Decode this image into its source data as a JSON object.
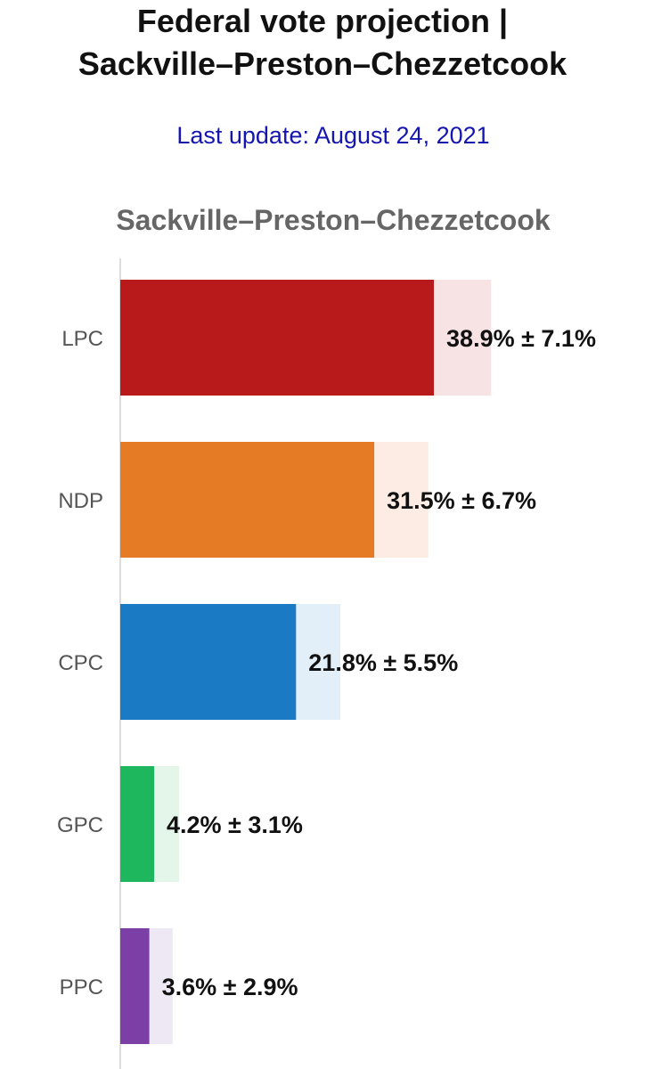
{
  "header": {
    "title_line1": "Federal vote projection |",
    "title_line2": "Sackville–Preston–Chezzetcook",
    "update": "Last update: August 24, 2021"
  },
  "chart_data": {
    "type": "bar",
    "orientation": "horizontal",
    "title": "Sackville–Preston–Chezzetcook",
    "categories": [
      "LPC",
      "NDP",
      "CPC",
      "GPC",
      "PPC"
    ],
    "values": [
      38.9,
      31.5,
      21.8,
      4.2,
      3.6
    ],
    "errors": [
      7.1,
      6.7,
      5.5,
      3.1,
      2.9
    ],
    "value_labels": [
      "38.9% ± 7.1%",
      "31.5% ± 6.7%",
      "21.8% ± 5.5%",
      "4.2% ± 3.1%",
      "3.6% ± 2.9%"
    ],
    "colors": [
      "#b8191b",
      "#e57b25",
      "#1b7ac4",
      "#1fb75e",
      "#7b3fa5"
    ],
    "band_colors": [
      "#f7e3e3",
      "#fcece3",
      "#e3eff8",
      "#e4f6ea",
      "#eee8f4"
    ],
    "xlim": [
      0,
      60
    ],
    "grid": false,
    "legend": "none"
  }
}
